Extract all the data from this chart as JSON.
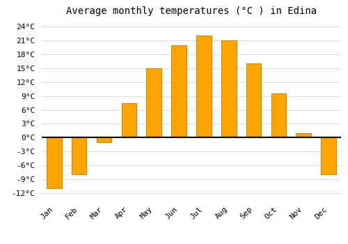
{
  "title": "Average monthly temperatures (°C ) in Edina",
  "months": [
    "Jan",
    "Feb",
    "Mar",
    "Apr",
    "May",
    "Jun",
    "Jul",
    "Aug",
    "Sep",
    "Oct",
    "Nov",
    "Dec"
  ],
  "values": [
    -11,
    -8,
    -1,
    7.5,
    15,
    20,
    22,
    21,
    16,
    9.5,
    1,
    -8
  ],
  "bar_color": "#FFA500",
  "bar_edge_color": "#CC8800",
  "yticks": [
    -12,
    -9,
    -6,
    -3,
    0,
    3,
    6,
    9,
    12,
    15,
    18,
    21,
    24
  ],
  "ytick_labels": [
    "-12°C",
    "-9°C",
    "-6°C",
    "-3°C",
    "0°C",
    "3°C",
    "6°C",
    "9°C",
    "12°C",
    "15°C",
    "18°C",
    "21°C",
    "24°C"
  ],
  "ylim": [
    -13.5,
    25.5
  ],
  "background_color": "#ffffff",
  "grid_color": "#dddddd",
  "zero_line_color": "#000000",
  "title_fontsize": 10,
  "tick_fontsize": 8
}
